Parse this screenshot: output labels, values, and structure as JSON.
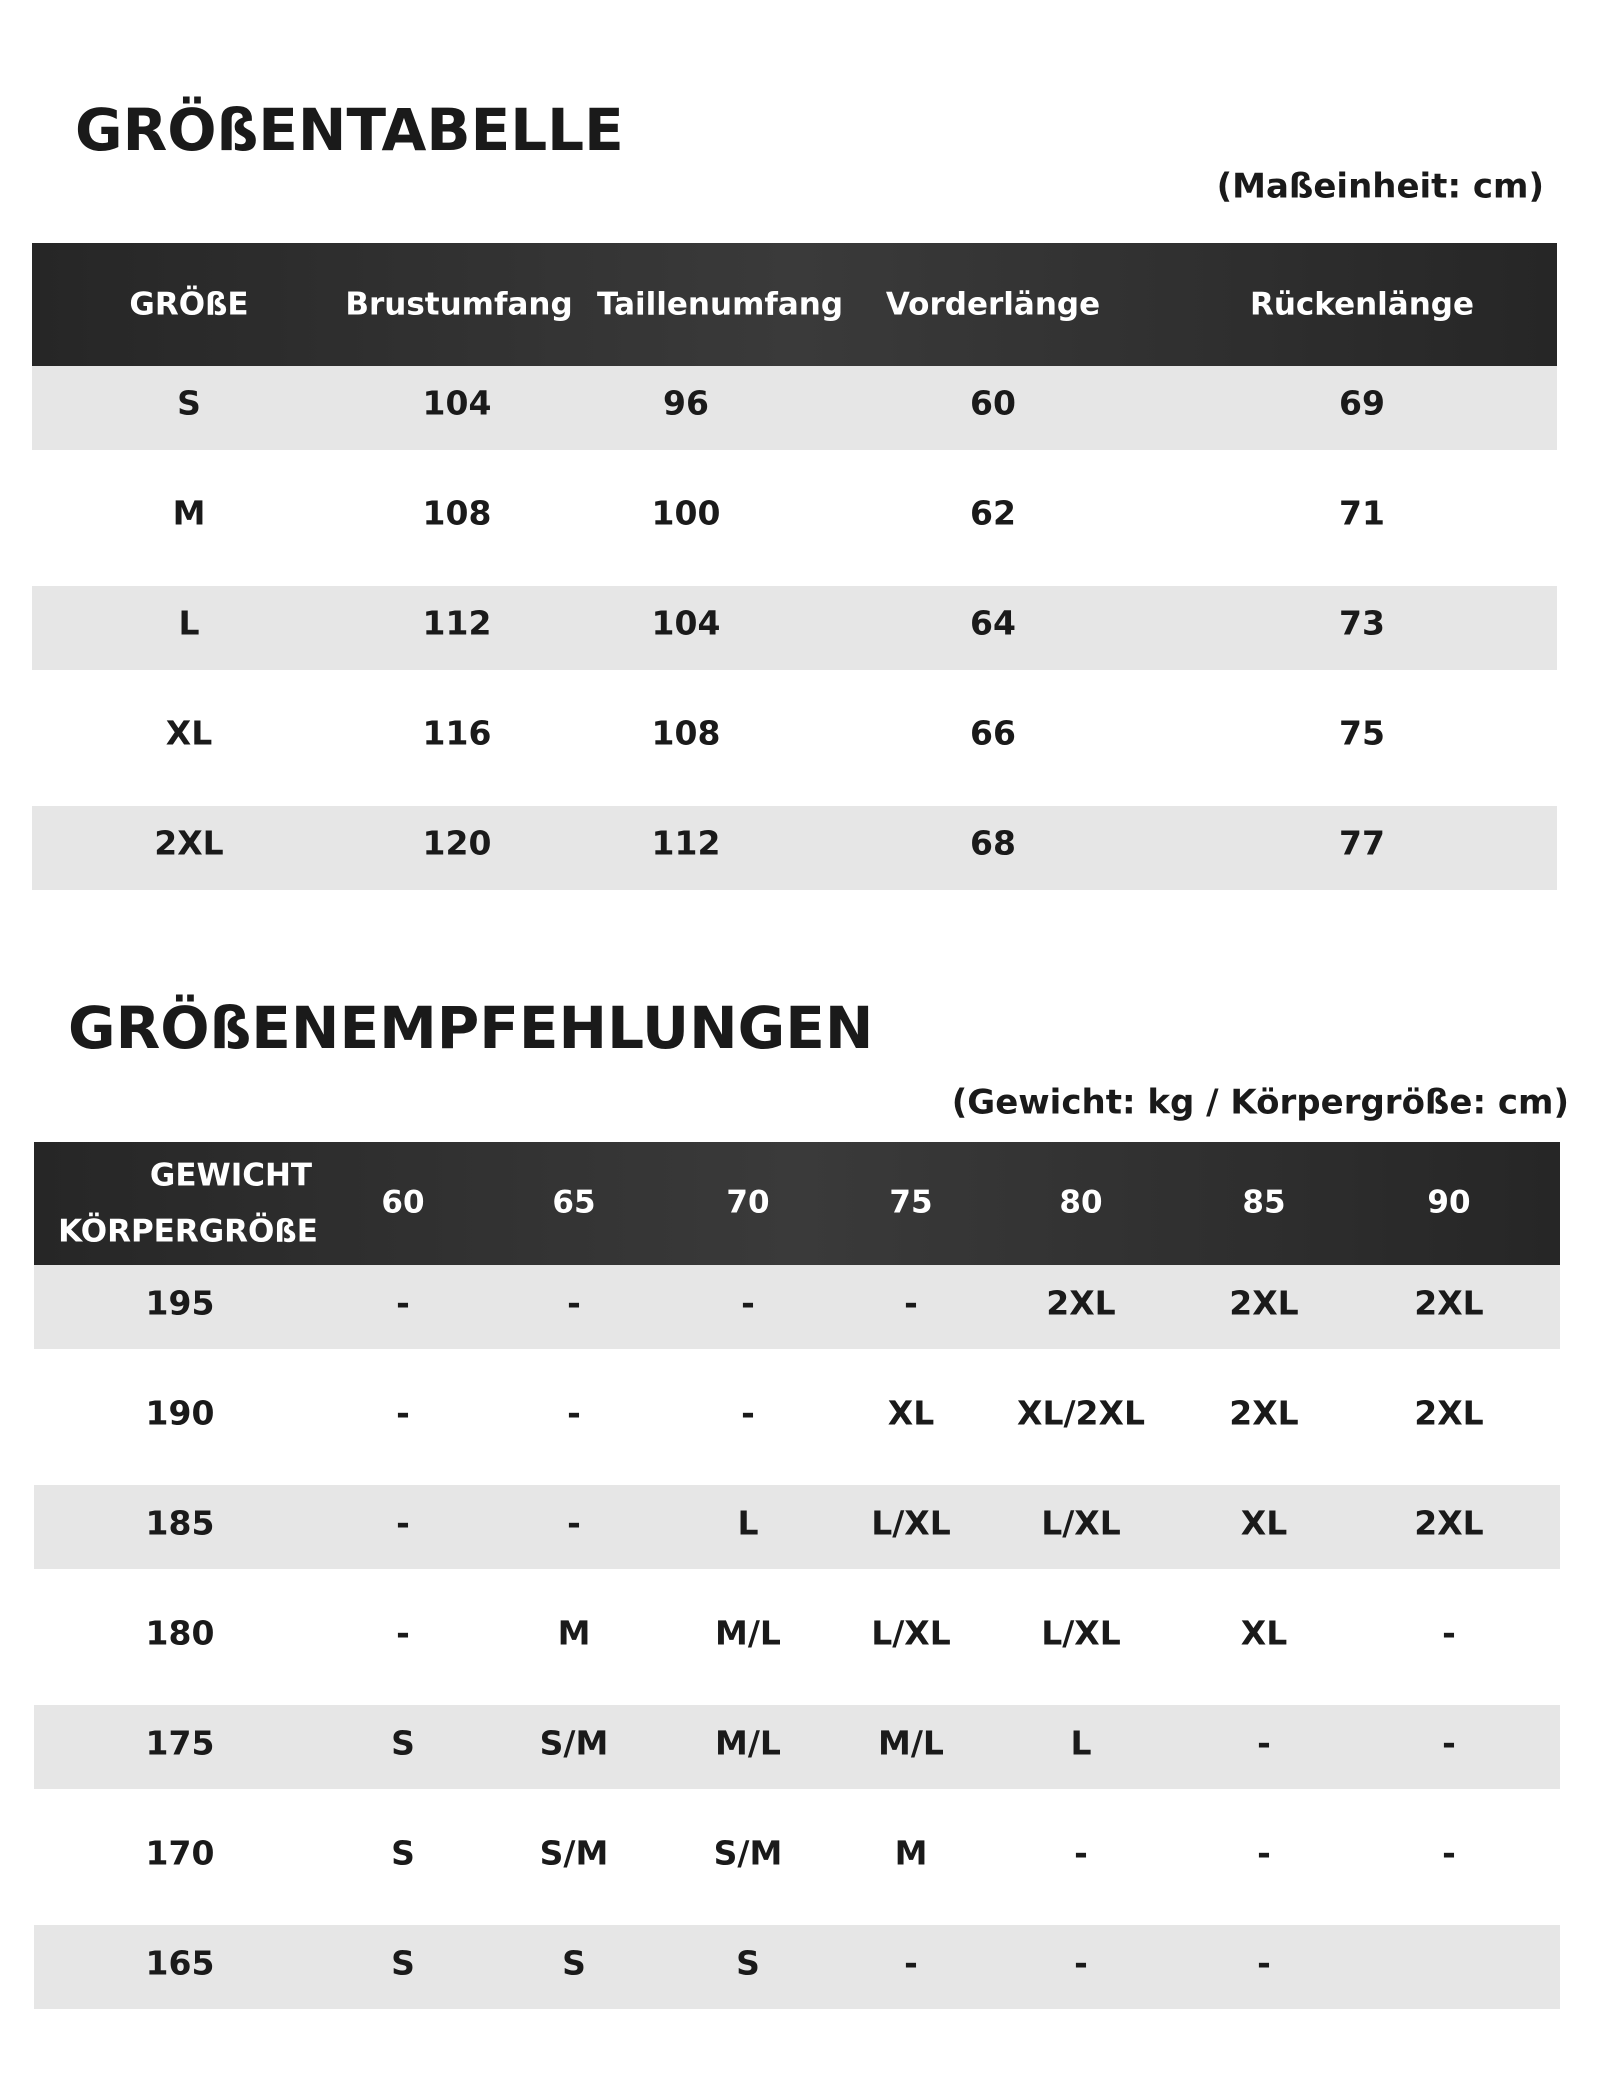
{
  "size_chart": {
    "title": "GRÖßENTABELLE",
    "unit_note": "(Maßeinheit: cm)",
    "header": [
      "GRÖßE",
      "Brustumfang",
      "Taillenumfang",
      "Vorderlänge",
      "Rückenlänge"
    ],
    "rows": [
      [
        "S",
        104,
        96,
        60,
        69
      ],
      [
        "M",
        108,
        100,
        62,
        71
      ],
      [
        "L",
        112,
        104,
        64,
        73
      ],
      [
        "XL",
        116,
        108,
        66,
        75
      ],
      [
        "2XL",
        120,
        112,
        68,
        77
      ]
    ]
  },
  "recommendation": {
    "title": "GRÖßENEMPFEHLUNGEN",
    "unit_note": "(Gewicht: kg / Körpergröße: cm)",
    "header_weight": "GEWICHT",
    "header_height": "KÖRPERGRÖßE",
    "weights": [
      60,
      65,
      70,
      75,
      80,
      85,
      90
    ],
    "rows": [
      {
        "height": 195,
        "sizes": [
          "-",
          "-",
          "-",
          "-",
          "2XL",
          "2XL",
          "2XL"
        ]
      },
      {
        "height": 190,
        "sizes": [
          "-",
          "-",
          "-",
          "XL",
          "XL/2XL",
          "2XL",
          "2XL"
        ]
      },
      {
        "height": 185,
        "sizes": [
          "-",
          "-",
          "L",
          "L/XL",
          "L/XL",
          "XL",
          "2XL"
        ]
      },
      {
        "height": 180,
        "sizes": [
          "-",
          "M",
          "M/L",
          "L/XL",
          "L/XL",
          "XL",
          "-"
        ]
      },
      {
        "height": 175,
        "sizes": [
          "S",
          "S/M",
          "M/L",
          "M/L",
          "L",
          "-",
          "-"
        ]
      },
      {
        "height": 170,
        "sizes": [
          "S",
          "S/M",
          "S/M",
          "M",
          "-",
          "-",
          "-"
        ]
      },
      {
        "height": 165,
        "sizes": [
          "S",
          "S",
          "S",
          "-",
          "-",
          "-",
          null
        ]
      }
    ]
  }
}
